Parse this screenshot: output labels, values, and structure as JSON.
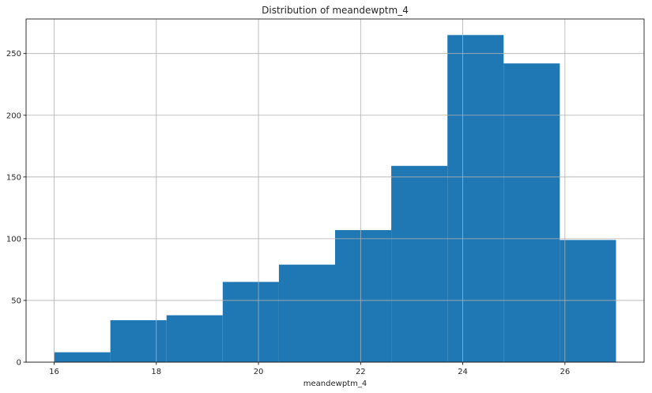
{
  "chart_data": {
    "type": "bar",
    "subtype": "histogram",
    "title": "Distribution of meandewptm_4",
    "xlabel": "meandewptm_4",
    "ylabel": "",
    "bin_edges": [
      16.0,
      17.1,
      18.2,
      19.3,
      20.4,
      21.5,
      22.6,
      23.7,
      24.8,
      25.9,
      27.0
    ],
    "counts": [
      8,
      34,
      38,
      65,
      79,
      107,
      159,
      265,
      242,
      99
    ],
    "xlim": [
      15.45,
      27.55
    ],
    "ylim": [
      0,
      278
    ],
    "xticks": [
      16,
      18,
      20,
      22,
      24,
      26
    ],
    "yticks": [
      0,
      50,
      100,
      150,
      200,
      250
    ],
    "grid": true,
    "legend": "none",
    "bar_color": "#1f77b4",
    "grid_color": "#b0b0b0"
  }
}
